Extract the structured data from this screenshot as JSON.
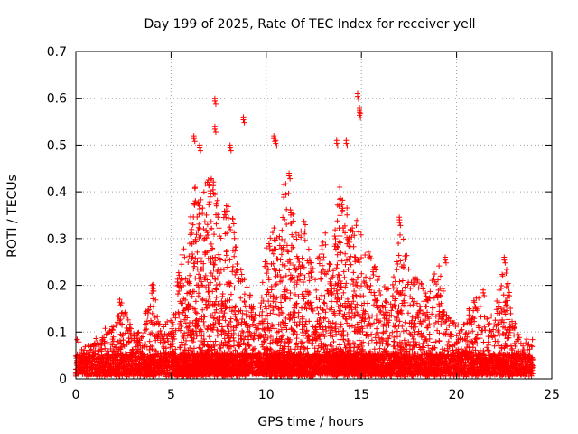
{
  "chart_data": {
    "type": "scatter",
    "title": "Day 199 of 2025, Rate Of TEC Index for receiver yell",
    "xlabel": "GPS time / hours",
    "ylabel": "ROTI / TECUs",
    "xlim": [
      0,
      25
    ],
    "ylim": [
      0,
      0.7
    ],
    "xticks": [
      0,
      5,
      10,
      15,
      20,
      25
    ],
    "xtick_labels": [
      "0",
      "5",
      "10",
      "15",
      "20",
      "25"
    ],
    "yticks": [
      0,
      0.1,
      0.2,
      0.3,
      0.4,
      0.5,
      0.6,
      0.7
    ],
    "ytick_labels": [
      "0",
      "0.1",
      "0.2",
      "0.3",
      "0.4",
      "0.5",
      "0.6",
      "0.7"
    ],
    "grid": true,
    "marker": "+",
    "color": "#ff0000",
    "series": [
      {
        "name": "ROTI",
        "x": [
          0.0,
          0.5,
          1.0,
          1.5,
          2.0,
          2.4,
          3.0,
          3.5,
          4.0,
          4.5,
          5.0,
          5.5,
          6.0,
          6.3,
          6.6,
          7.0,
          7.3,
          7.6,
          8.0,
          8.3,
          8.6,
          9.0,
          9.5,
          10.0,
          10.3,
          10.6,
          11.0,
          11.3,
          11.6,
          12.0,
          12.5,
          13.0,
          13.5,
          13.8,
          14.2,
          14.5,
          14.8,
          15.2,
          15.5,
          16.0,
          16.5,
          17.0,
          17.5,
          18.0,
          18.5,
          19.0,
          19.5,
          20.0,
          20.5,
          21.0,
          21.5,
          22.0,
          22.5,
          23.0,
          23.5,
          24.0,
          6.2,
          6.5,
          7.3,
          7.3,
          8.1,
          8.8,
          10.4,
          10.5,
          11.2,
          13.7,
          14.2,
          14.8,
          14.9,
          14.9,
          17.0,
          19.4,
          21.4,
          22.5,
          4.0,
          2.3
        ],
        "y": [
          0.09,
          0.06,
          0.08,
          0.1,
          0.11,
          0.16,
          0.09,
          0.1,
          0.2,
          0.1,
          0.12,
          0.24,
          0.35,
          0.42,
          0.37,
          0.45,
          0.41,
          0.33,
          0.38,
          0.32,
          0.24,
          0.2,
          0.12,
          0.27,
          0.33,
          0.31,
          0.43,
          0.39,
          0.29,
          0.33,
          0.22,
          0.32,
          0.27,
          0.42,
          0.38,
          0.32,
          0.34,
          0.28,
          0.26,
          0.2,
          0.18,
          0.34,
          0.23,
          0.21,
          0.17,
          0.25,
          0.13,
          0.11,
          0.12,
          0.19,
          0.12,
          0.13,
          0.26,
          0.12,
          0.06,
          0.1,
          0.52,
          0.5,
          0.6,
          0.54,
          0.5,
          0.56,
          0.52,
          0.51,
          0.44,
          0.51,
          0.51,
          0.61,
          0.58,
          0.57,
          0.34,
          0.26,
          0.19,
          0.26,
          0.2,
          0.17
        ],
        "baseline_band": [
          0.0,
          0.05
        ]
      }
    ]
  }
}
